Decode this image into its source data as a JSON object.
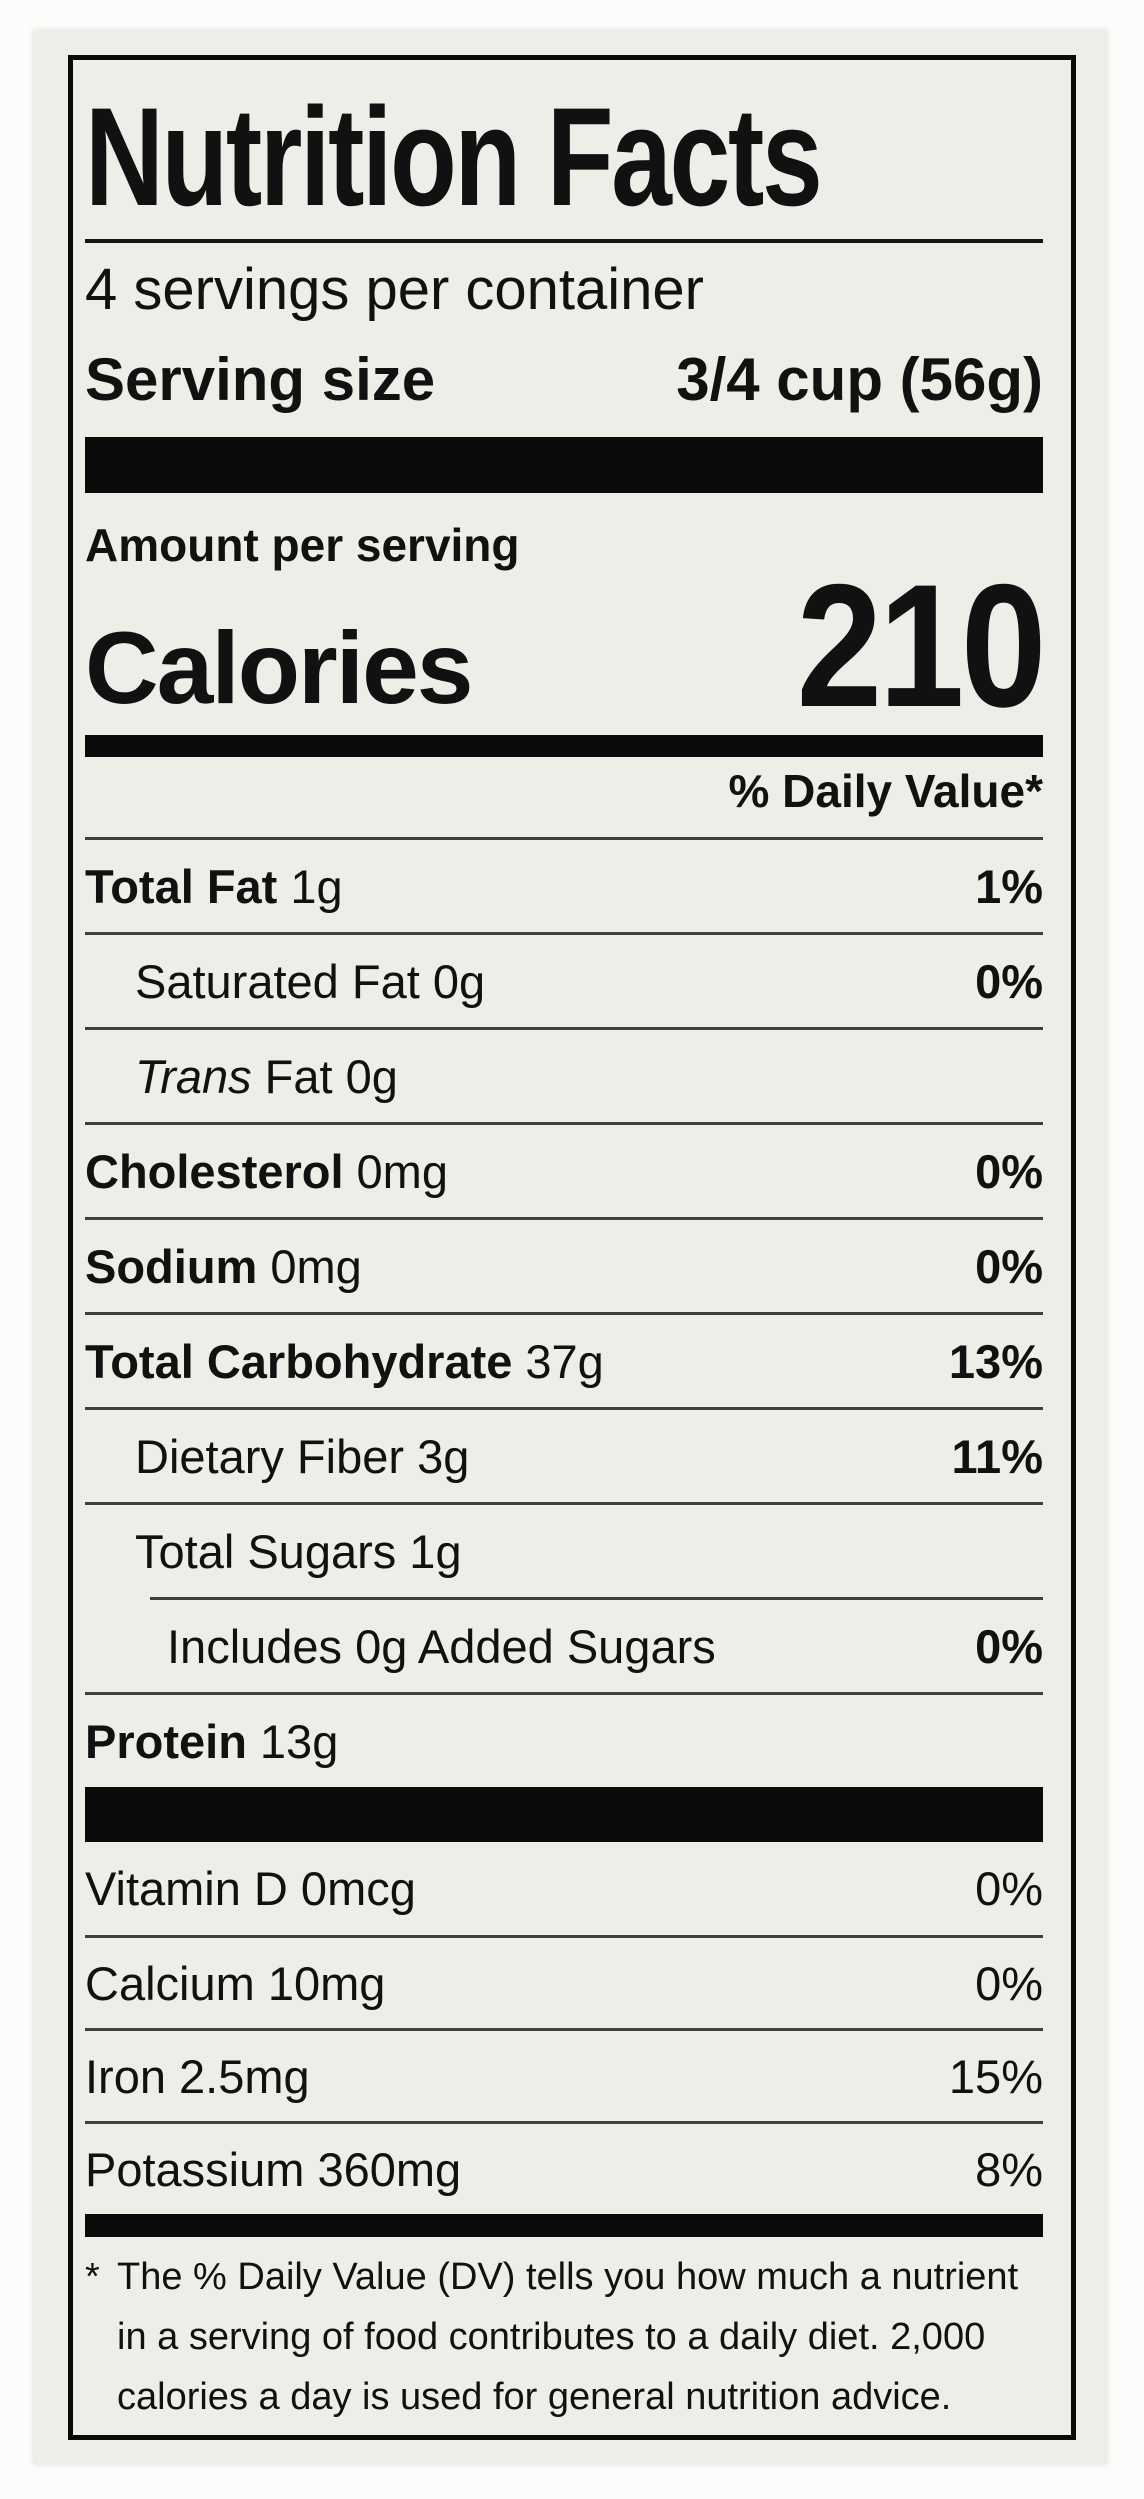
{
  "label": {
    "title": "Nutrition Facts",
    "servings_per_container": "4 servings per container",
    "serving_size_label": "Serving size",
    "serving_size_value": "3/4 cup (56g)",
    "amount_per_serving": "Amount per serving",
    "calories_label": "Calories",
    "calories_value": "210",
    "daily_value_header": "% Daily Value*",
    "nutrients": [
      {
        "bold": "Total Fat",
        "rest": "1g",
        "dv": "1%"
      },
      {
        "rest": "Saturated Fat 0g",
        "dv": "0%"
      },
      {
        "italic": "Trans",
        "rest": "Fat 0g",
        "dv": ""
      },
      {
        "bold": "Cholesterol",
        "rest": "0mg",
        "dv": "0%"
      },
      {
        "bold": "Sodium",
        "rest": "0mg",
        "dv": "0%"
      },
      {
        "bold": "Total Carbohydrate",
        "rest": "37g",
        "dv": "13%"
      },
      {
        "rest": "Dietary Fiber 3g",
        "dv": "11%"
      },
      {
        "rest": "Total Sugars 1g",
        "dv": ""
      },
      {
        "rest": "Includes 0g Added Sugars",
        "dv": "0%"
      },
      {
        "bold": "Protein",
        "rest": "13g",
        "dv": ""
      }
    ],
    "micronutrients": [
      {
        "rest": "Vitamin D 0mcg",
        "dv": "0%"
      },
      {
        "rest": "Calcium 10mg",
        "dv": "0%"
      },
      {
        "rest": "Iron 2.5mg",
        "dv": "15%"
      },
      {
        "rest": "Potassium 360mg",
        "dv": "8%"
      }
    ],
    "footnote_marker": "*",
    "footnote_lines": [
      "The % Daily Value (DV) tells you how much a nutrient",
      "in a serving of food contributes to a daily diet. 2,000",
      "calories a day is used for general nutrition advice."
    ]
  },
  "colors": {
    "label_bg": "#edeee8",
    "page_bg": "#fcfcfb",
    "text": "#111111"
  }
}
